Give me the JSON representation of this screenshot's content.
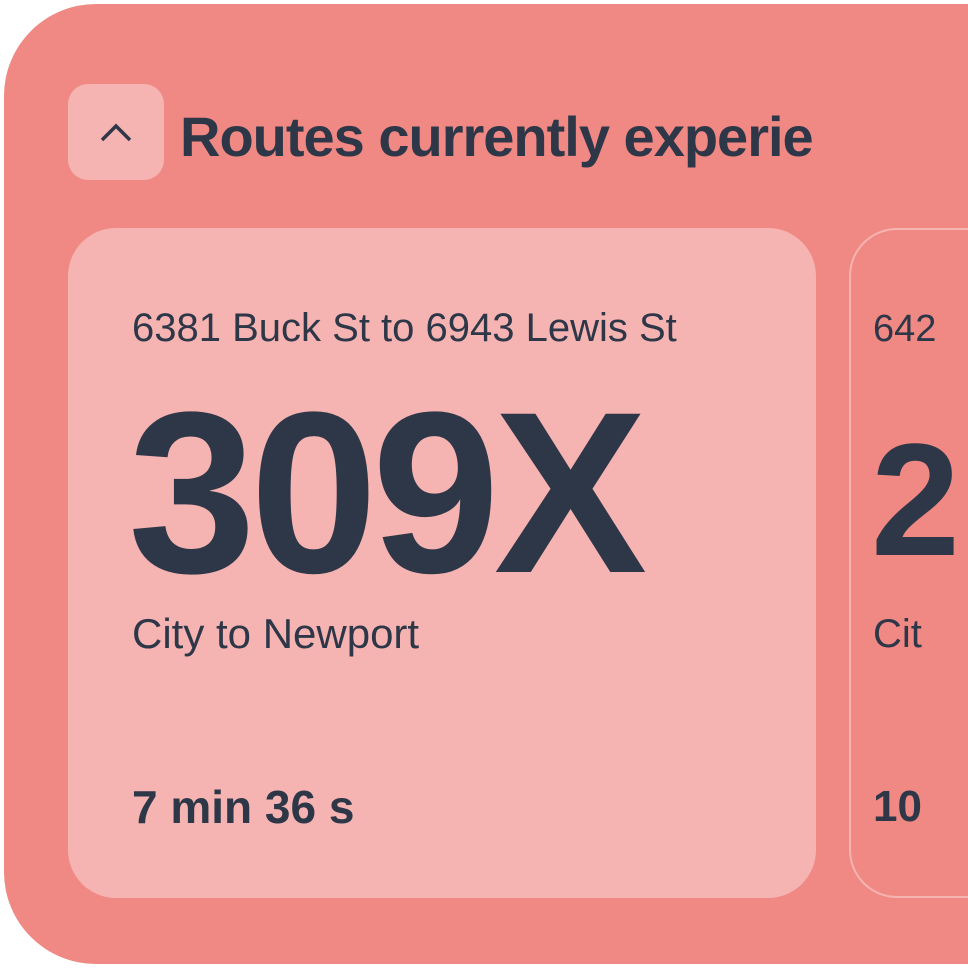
{
  "colors": {
    "panel": "#f08883",
    "card": "#f5b3b1",
    "text": "#2e3748"
  },
  "header": {
    "toggle_icon": "chevron-up-icon",
    "title": "Routes currently experie"
  },
  "routes": [
    {
      "address": "6381 Buck St to 6943 Lewis St",
      "route_number": "309X",
      "destination": "City to Newport",
      "delay": "7 min 36 s"
    },
    {
      "address": "642",
      "route_number": "2",
      "destination": "Cit",
      "delay": "10"
    }
  ]
}
